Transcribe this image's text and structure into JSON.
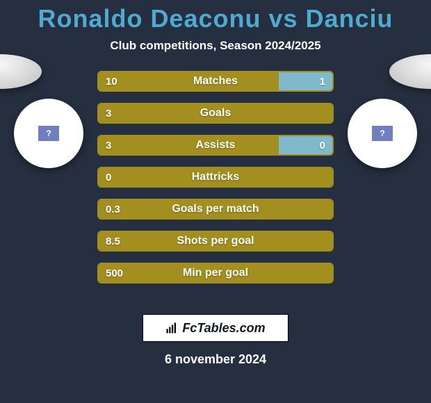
{
  "colors": {
    "bg": "#252f3f",
    "title": "#4faad1",
    "text": "#ffffff",
    "accent": "#a28f1f",
    "accent2": "#7fb9cb",
    "ballTop": "#f8f8f8",
    "ballBottom": "#cfcfcf",
    "badgeBg": "#ffffff",
    "badgeSq": "#6f7fbf",
    "footerText": "#0f1a24"
  },
  "title": "Ronaldo Deaconu vs Danciu",
  "title_fontsize": 36,
  "subtitle": "Club competitions, Season 2024/2025",
  "subtitle_fontsize": 17,
  "rows": [
    {
      "label": "Matches",
      "left": "10",
      "right": "1",
      "leftPct": 77,
      "rightPct": 23,
      "showRight": true
    },
    {
      "label": "Goals",
      "left": "3",
      "right": "",
      "leftPct": 100,
      "rightPct": 0,
      "showRight": false
    },
    {
      "label": "Assists",
      "left": "3",
      "right": "0",
      "leftPct": 77,
      "rightPct": 23,
      "showRight": true
    },
    {
      "label": "Hattricks",
      "left": "0",
      "right": "",
      "leftPct": 100,
      "rightPct": 0,
      "showRight": false
    },
    {
      "label": "Goals per match",
      "left": "0.3",
      "right": "",
      "leftPct": 100,
      "rightPct": 0,
      "showRight": false
    },
    {
      "label": "Shots per goal",
      "left": "8.5",
      "right": "",
      "leftPct": 100,
      "rightPct": 0,
      "showRight": false
    },
    {
      "label": "Min per goal",
      "left": "500",
      "right": "",
      "leftPct": 100,
      "rightPct": 0,
      "showRight": false
    }
  ],
  "row_fontsize": 16,
  "badge_glyph": "?",
  "footer_label": "FcTables.com",
  "date": "6 november 2024",
  "date_fontsize": 18
}
